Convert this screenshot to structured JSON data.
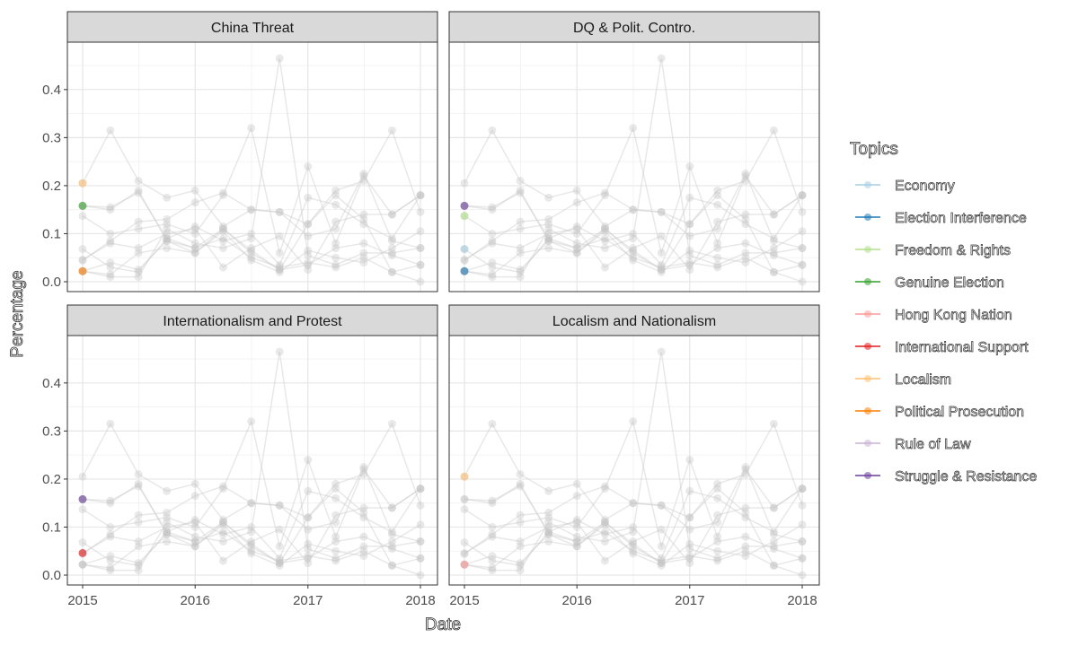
{
  "chart_data": {
    "type": "line",
    "xlabel": "Date",
    "ylabel": "Percentage",
    "xlim": [
      "2015-01-01",
      "2018-01-01"
    ],
    "ylim": [
      0,
      0.48
    ],
    "x_ticks": [
      "2015",
      "2016",
      "2017",
      "2018"
    ],
    "y_ticks": [
      "0.0",
      "0.1",
      "0.2",
      "0.3",
      "0.4"
    ],
    "grid": true,
    "legend_position": "right",
    "legend_title": "Topics",
    "dates": [
      "2015-01-01",
      "2015-04-01",
      "2015-07-01",
      "2015-10-01",
      "2016-01-01",
      "2016-04-01",
      "2016-07-01",
      "2016-10-01",
      "2017-01-01",
      "2017-04-01",
      "2017-07-01",
      "2017-10-01",
      "2018-01-01"
    ],
    "series": [
      {
        "name": "Economy",
        "color": "#a6cee3",
        "values": [
          0.068,
          0.03,
          0.02,
          0.09,
          0.07,
          0.09,
          0.05,
          0.03,
          0.04,
          0.03,
          0.05,
          0.02,
          0.0
        ]
      },
      {
        "name": "Election Interference",
        "color": "#1f78b4",
        "values": [
          0.022,
          0.04,
          0.025,
          0.085,
          0.06,
          0.11,
          0.06,
          0.025,
          0.035,
          0.07,
          0.08,
          0.055,
          0.035
        ]
      },
      {
        "name": "Freedom & Rights",
        "color": "#b2df8a",
        "values": [
          0.137,
          0.1,
          0.11,
          0.12,
          0.1,
          0.18,
          0.32,
          0.06,
          0.24,
          0.08,
          0.22,
          0.14,
          0.18
        ]
      },
      {
        "name": "Genuine Election",
        "color": "#33a02c",
        "values": [
          0.158,
          0.155,
          0.185,
          0.09,
          0.115,
          0.085,
          0.1,
          0.035,
          0.175,
          0.16,
          0.12,
          0.09,
          0.18
        ]
      },
      {
        "name": "Hong Kong Nation",
        "color": "#fb9a99",
        "values": [
          0.022,
          0.01,
          0.01,
          0.11,
          0.08,
          0.07,
          0.09,
          0.465,
          0.055,
          0.035,
          0.06,
          0.06,
          0.07
        ]
      },
      {
        "name": "International Support",
        "color": "#e31a1c",
        "values": [
          0.046,
          0.08,
          0.07,
          0.1,
          0.11,
          0.03,
          0.07,
          0.095,
          0.025,
          0.125,
          0.14,
          0.14,
          0.18
        ]
      },
      {
        "name": "Localism",
        "color": "#fdbf6f",
        "values": [
          0.205,
          0.315,
          0.21,
          0.175,
          0.19,
          0.115,
          0.15,
          0.145,
          0.12,
          0.19,
          0.21,
          0.315,
          0.145
        ]
      },
      {
        "name": "Political Prosecution",
        "color": "#ff7f00",
        "values": [
          0.022,
          0.015,
          0.06,
          0.07,
          0.06,
          0.105,
          0.045,
          0.02,
          0.065,
          0.05,
          0.04,
          0.07,
          0.105
        ]
      },
      {
        "name": "Rule of Law",
        "color": "#cab2d6",
        "values": [
          0.044,
          0.085,
          0.125,
          0.13,
          0.165,
          0.185,
          0.15,
          0.145,
          0.095,
          0.11,
          0.225,
          0.085,
          0.07
        ]
      },
      {
        "name": "Struggle & Resistance",
        "color": "#6a3d9a",
        "values": [
          0.158,
          0.15,
          0.19,
          0.085,
          0.07,
          0.11,
          0.065,
          0.025,
          0.12,
          0.18,
          0.13,
          0.02,
          0.035
        ]
      }
    ],
    "panels": [
      {
        "title": "China Threat",
        "highlighted": [
          "Genuine Election",
          "Localism",
          "Political Prosecution"
        ]
      },
      {
        "title": "DQ & Polit. Contro.",
        "highlighted": [
          "Economy",
          "Election Interference",
          "Freedom & Rights",
          "Struggle & Resistance"
        ]
      },
      {
        "title": "Internationalism and Protest",
        "highlighted": [
          "International Support",
          "Struggle & Resistance"
        ]
      },
      {
        "title": "Localism and Nationalism",
        "highlighted": [
          "Hong Kong Nation",
          "Localism"
        ]
      }
    ]
  }
}
